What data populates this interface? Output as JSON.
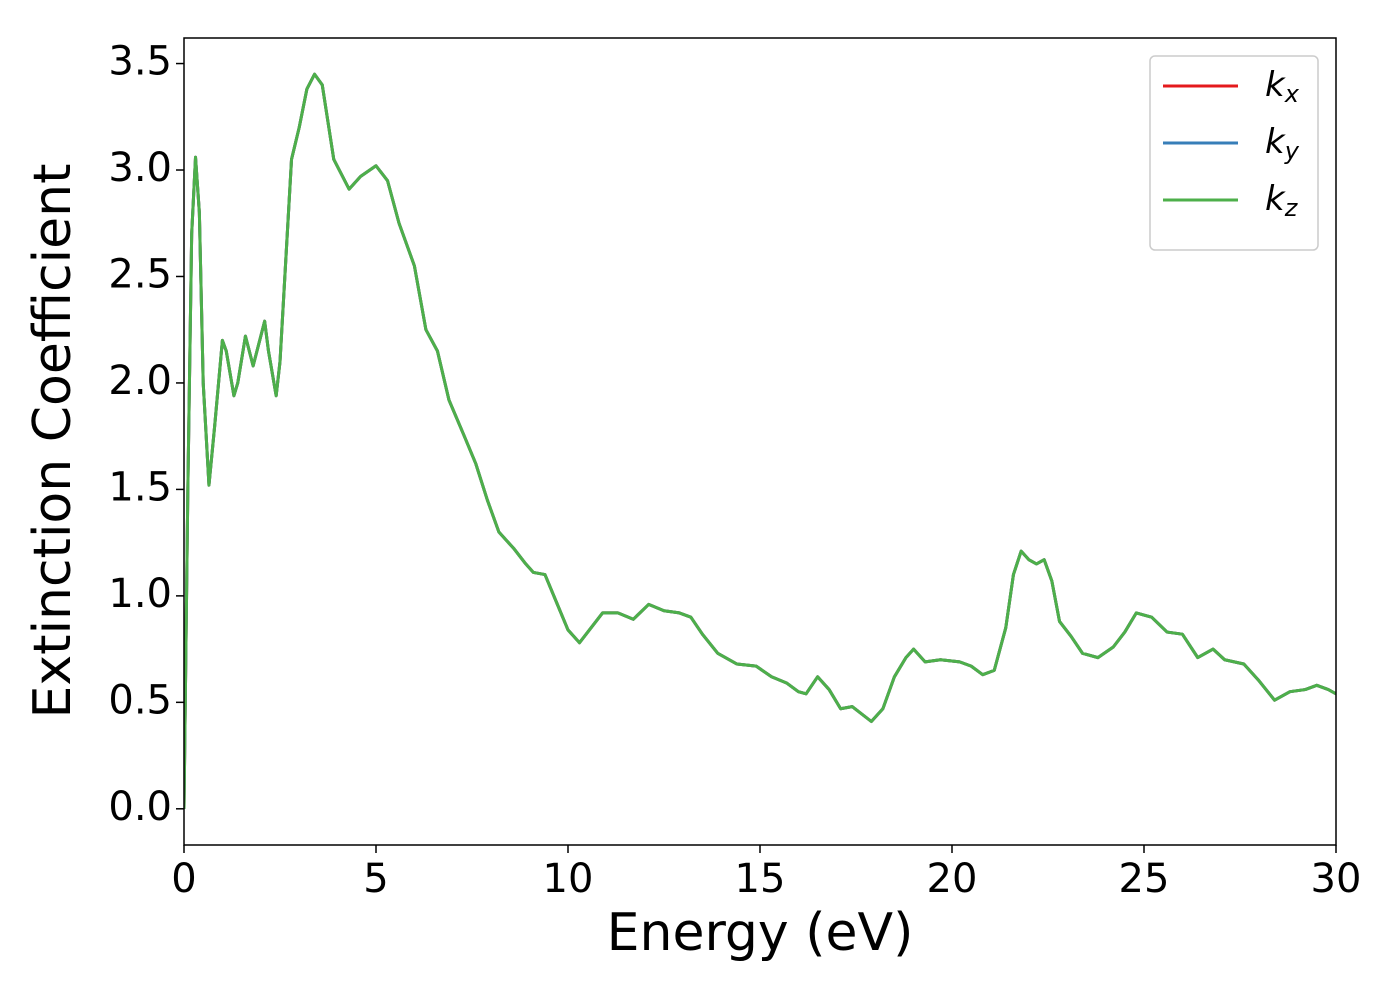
{
  "chart_data": {
    "type": "line",
    "x_label": "Energy (eV)",
    "y_label": "Extinction Coefficient",
    "xlim": [
      0,
      30
    ],
    "ylim": [
      -0.17,
      3.62
    ],
    "xticks": [
      0,
      5,
      10,
      15,
      20,
      25,
      30
    ],
    "yticks": [
      {
        "value": 0,
        "label": "0.0"
      },
      0.5,
      {
        "value": 1,
        "label": "1.0"
      },
      1.5,
      {
        "value": 2,
        "label": "2.0"
      },
      2.5,
      {
        "value": 3,
        "label": "3.0"
      },
      3.5
    ],
    "legend": "upper right",
    "grid": false,
    "x": [
      0,
      0.1,
      0.2,
      0.3,
      0.4,
      0.5,
      0.65,
      0.8,
      1.0,
      1.1,
      1.3,
      1.4,
      1.6,
      1.8,
      2.1,
      2.2,
      2.4,
      2.5,
      2.8,
      3.0,
      3.2,
      3.4,
      3.6,
      3.9,
      4.3,
      4.6,
      5.0,
      5.3,
      5.6,
      6.0,
      6.3,
      6.6,
      6.9,
      7.3,
      7.6,
      7.9,
      8.2,
      8.6,
      8.9,
      9.1,
      9.4,
      9.7,
      10.0,
      10.3,
      10.6,
      10.9,
      11.3,
      11.7,
      12.1,
      12.5,
      12.9,
      13.2,
      13.5,
      13.9,
      14.4,
      14.9,
      15.3,
      15.7,
      16.0,
      16.2,
      16.5,
      16.8,
      17.1,
      17.4,
      17.9,
      18.2,
      18.5,
      18.8,
      19.0,
      19.3,
      19.7,
      20.2,
      20.5,
      20.8,
      21.1,
      21.4,
      21.6,
      21.8,
      22.0,
      22.2,
      22.4,
      22.6,
      22.8,
      23.1,
      23.4,
      23.8,
      24.2,
      24.5,
      24.8,
      25.2,
      25.6,
      26.0,
      26.4,
      26.8,
      27.1,
      27.6,
      28.0,
      28.4,
      28.8,
      29.2,
      29.5,
      29.8,
      30.0
    ],
    "series": [
      {
        "name": "kx",
        "color": "#e41a1c",
        "values": [
          0.0,
          1.5,
          2.7,
          3.06,
          2.8,
          2.0,
          1.52,
          1.8,
          2.2,
          2.15,
          1.94,
          2.0,
          2.22,
          2.08,
          2.29,
          2.15,
          1.94,
          2.1,
          3.05,
          3.2,
          3.38,
          3.45,
          3.4,
          3.05,
          2.91,
          2.97,
          3.02,
          2.95,
          2.75,
          2.55,
          2.25,
          2.15,
          1.92,
          1.75,
          1.62,
          1.45,
          1.3,
          1.22,
          1.15,
          1.11,
          1.1,
          0.97,
          0.84,
          0.78,
          0.85,
          0.92,
          0.92,
          0.89,
          0.96,
          0.93,
          0.92,
          0.9,
          0.82,
          0.73,
          0.68,
          0.67,
          0.62,
          0.59,
          0.55,
          0.54,
          0.62,
          0.56,
          0.47,
          0.48,
          0.41,
          0.47,
          0.62,
          0.71,
          0.75,
          0.69,
          0.7,
          0.69,
          0.67,
          0.63,
          0.65,
          0.85,
          1.1,
          1.21,
          1.17,
          1.15,
          1.17,
          1.07,
          0.88,
          0.81,
          0.73,
          0.71,
          0.76,
          0.83,
          0.92,
          0.9,
          0.83,
          0.82,
          0.71,
          0.75,
          0.7,
          0.68,
          0.6,
          0.51,
          0.55,
          0.56,
          0.58,
          0.56,
          0.54
        ]
      },
      {
        "name": "ky",
        "color": "#377eb8",
        "values": [
          0.0,
          1.5,
          2.7,
          3.06,
          2.8,
          2.0,
          1.52,
          1.8,
          2.2,
          2.15,
          1.94,
          2.0,
          2.22,
          2.08,
          2.29,
          2.15,
          1.94,
          2.1,
          3.05,
          3.2,
          3.38,
          3.45,
          3.4,
          3.05,
          2.91,
          2.97,
          3.02,
          2.95,
          2.75,
          2.55,
          2.25,
          2.15,
          1.92,
          1.75,
          1.62,
          1.45,
          1.3,
          1.22,
          1.15,
          1.11,
          1.1,
          0.97,
          0.84,
          0.78,
          0.85,
          0.92,
          0.92,
          0.89,
          0.96,
          0.93,
          0.92,
          0.9,
          0.82,
          0.73,
          0.68,
          0.67,
          0.62,
          0.59,
          0.55,
          0.54,
          0.62,
          0.56,
          0.47,
          0.48,
          0.41,
          0.47,
          0.62,
          0.71,
          0.75,
          0.69,
          0.7,
          0.69,
          0.67,
          0.63,
          0.65,
          0.85,
          1.1,
          1.21,
          1.17,
          1.15,
          1.17,
          1.07,
          0.88,
          0.81,
          0.73,
          0.71,
          0.76,
          0.83,
          0.92,
          0.9,
          0.83,
          0.82,
          0.71,
          0.75,
          0.7,
          0.68,
          0.6,
          0.51,
          0.55,
          0.56,
          0.58,
          0.56,
          0.54
        ]
      },
      {
        "name": "kz",
        "color": "#4daf4a",
        "values": [
          0.0,
          1.5,
          2.7,
          3.06,
          2.8,
          2.0,
          1.52,
          1.8,
          2.2,
          2.15,
          1.94,
          2.0,
          2.22,
          2.08,
          2.29,
          2.15,
          1.94,
          2.1,
          3.05,
          3.2,
          3.38,
          3.45,
          3.4,
          3.05,
          2.91,
          2.97,
          3.02,
          2.95,
          2.75,
          2.55,
          2.25,
          2.15,
          1.92,
          1.75,
          1.62,
          1.45,
          1.3,
          1.22,
          1.15,
          1.11,
          1.1,
          0.97,
          0.84,
          0.78,
          0.85,
          0.92,
          0.92,
          0.89,
          0.96,
          0.93,
          0.92,
          0.9,
          0.82,
          0.73,
          0.68,
          0.67,
          0.62,
          0.59,
          0.55,
          0.54,
          0.62,
          0.56,
          0.47,
          0.48,
          0.41,
          0.47,
          0.62,
          0.71,
          0.75,
          0.69,
          0.7,
          0.69,
          0.67,
          0.63,
          0.65,
          0.85,
          1.1,
          1.21,
          1.17,
          1.15,
          1.17,
          1.07,
          0.88,
          0.81,
          0.73,
          0.71,
          0.76,
          0.83,
          0.92,
          0.9,
          0.83,
          0.82,
          0.71,
          0.75,
          0.7,
          0.68,
          0.6,
          0.51,
          0.55,
          0.56,
          0.58,
          0.56,
          0.54
        ]
      }
    ]
  }
}
